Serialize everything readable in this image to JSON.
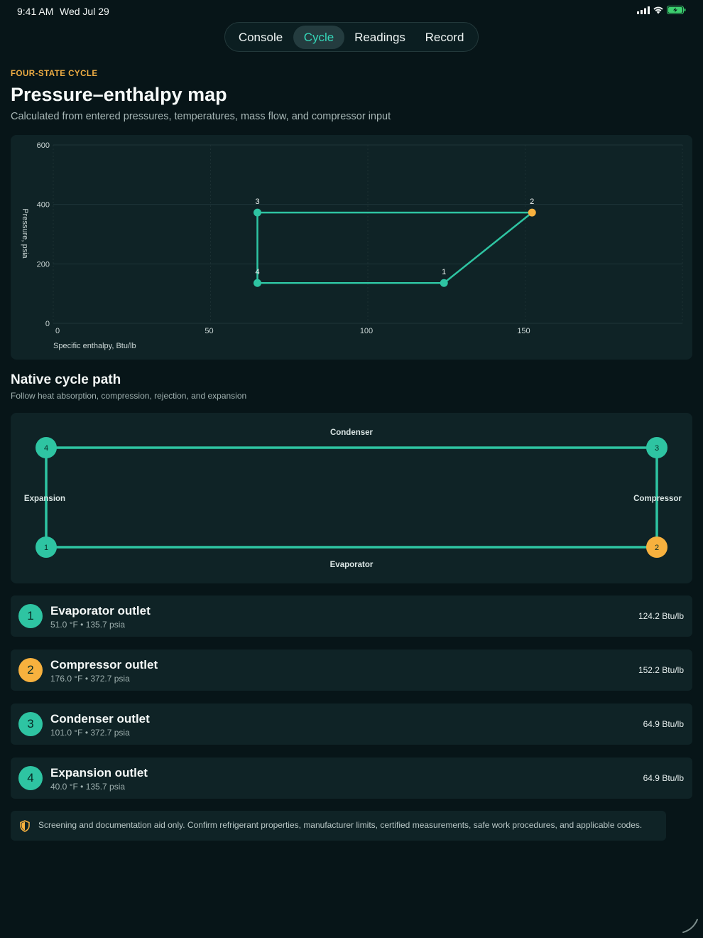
{
  "status": {
    "time": "9:41 AM",
    "date": "Wed Jul 29",
    "icons": [
      "signal-icon",
      "wifi-icon",
      "battery-charging-icon"
    ]
  },
  "tabs": [
    {
      "label": "Console",
      "active": false
    },
    {
      "label": "Cycle",
      "active": true
    },
    {
      "label": "Readings",
      "active": false
    },
    {
      "label": "Record",
      "active": false
    }
  ],
  "header": {
    "eyebrow": "FOUR-STATE CYCLE",
    "title": "Pressure–enthalpy map",
    "subtitle": "Calculated from entered pressures, temperatures, mass flow, and compressor input"
  },
  "chart_data": {
    "type": "line",
    "xlabel": "Specific enthalpy, Btu/lb",
    "ylabel": "Pressure, psia",
    "xlim": [
      0,
      200
    ],
    "ylim": [
      0,
      600
    ],
    "x_ticks": [
      0,
      50,
      100,
      150
    ],
    "y_ticks": [
      0,
      200,
      400,
      600
    ],
    "grid": true,
    "points": [
      {
        "label": "1",
        "x": 124.2,
        "y": 135.7
      },
      {
        "label": "2",
        "x": 152.2,
        "y": 372.7
      },
      {
        "label": "3",
        "x": 64.9,
        "y": 372.7
      },
      {
        "label": "4",
        "x": 64.9,
        "y": 135.7
      }
    ],
    "highlight_point": "2"
  },
  "path": {
    "title": "Native cycle path",
    "subtitle": "Follow heat absorption, compression, rejection, and expansion",
    "labels": {
      "top": "Condenser",
      "bottom": "Evaporator",
      "left": "Expansion",
      "right": "Compressor"
    },
    "nodes": [
      "4",
      "3",
      "1",
      "2"
    ]
  },
  "states": [
    {
      "num": "1",
      "name": "Evaporator outlet",
      "meta": "51.0 °F • 135.7 psia",
      "value": "124.2 Btu/lb",
      "color": "#2ec4a2"
    },
    {
      "num": "2",
      "name": "Compressor outlet",
      "meta": "176.0 °F • 372.7 psia",
      "value": "152.2 Btu/lb",
      "color": "#f7b13e"
    },
    {
      "num": "3",
      "name": "Condenser outlet",
      "meta": "101.0 °F • 372.7 psia",
      "value": "64.9 Btu/lb",
      "color": "#2ec4a2"
    },
    {
      "num": "4",
      "name": "Expansion outlet",
      "meta": "40.0 °F • 135.7 psia",
      "value": "64.9 Btu/lb",
      "color": "#2ec4a2"
    }
  ],
  "notice": "Screening and documentation aid only. Confirm refrigerant properties, manufacturer limits, certified measurements, safe work procedures, and applicable codes.",
  "colors": {
    "accent": "#2ec4a2",
    "warning": "#f7b13e",
    "background": "#071518",
    "card": "#0f2326"
  }
}
